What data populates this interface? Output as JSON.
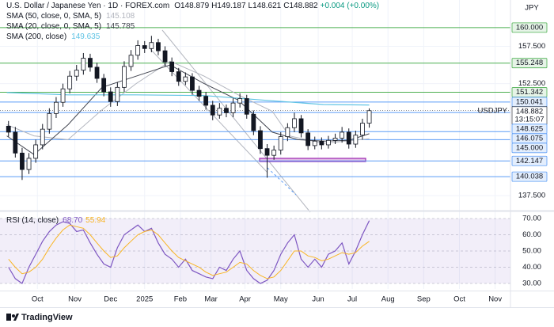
{
  "chart_data": {
    "type": "candlestick",
    "title": "U.S. Dollar / Japanese Yen · 1D · FOREX.com",
    "quote": [
      "O148.879",
      "H149.187",
      "L148.621",
      "C148.882",
      "+0.004 (+0.00%)"
    ],
    "currency": "JPY",
    "xlim": [
      0,
      300
    ],
    "xticks": [
      {
        "value": 22,
        "label": "Oct"
      },
      {
        "value": 44,
        "label": "Nov"
      },
      {
        "value": 65,
        "label": "Dec"
      },
      {
        "value": 85,
        "label": "2025"
      },
      {
        "value": 106,
        "label": "Feb"
      },
      {
        "value": 124,
        "label": "Mar"
      },
      {
        "value": 144,
        "label": "Apr"
      },
      {
        "value": 165,
        "label": "May"
      },
      {
        "value": 187,
        "label": "Jun"
      },
      {
        "value": 207,
        "label": "Jul"
      },
      {
        "value": 228,
        "label": "Aug"
      },
      {
        "value": 249,
        "label": "Sep"
      },
      {
        "value": 270,
        "label": "Oct"
      },
      {
        "value": 291,
        "label": "Nov"
      }
    ],
    "ylim": [
      135.6,
      163.7
    ],
    "yticks": [
      {
        "value": 137.5,
        "label": "137.500"
      },
      {
        "value": 152.5,
        "label": "152.500"
      },
      {
        "value": 157.5,
        "label": "157.500"
      }
    ],
    "grid": true,
    "candles": {
      "x": [
        5,
        9,
        13,
        17,
        21,
        25,
        29,
        33,
        37,
        41,
        45,
        49,
        53,
        57,
        61,
        65,
        69,
        73,
        77,
        81,
        85,
        89,
        93,
        97,
        101,
        105,
        109,
        113,
        117,
        121,
        125,
        129,
        133,
        137,
        141,
        145,
        149,
        153,
        157,
        161,
        165,
        169,
        173,
        177,
        181,
        185,
        189,
        193,
        197,
        201,
        205,
        209,
        213,
        217
      ],
      "open": [
        146.8,
        146.0,
        143.2,
        141.0,
        142.5,
        144.3,
        146.4,
        148.5,
        150.0,
        151.8,
        153.5,
        154.3,
        155.9,
        154.7,
        153.2,
        151.4,
        150.1,
        152.0,
        154.8,
        156.3,
        157.6,
        157.2,
        158.0,
        156.9,
        155.4,
        154.1,
        152.8,
        153.4,
        151.6,
        150.8,
        149.6,
        148.3,
        149.2,
        148.6,
        149.9,
        150.5,
        148.4,
        146.2,
        143.8,
        142.9,
        143.6,
        145.4,
        146.6,
        147.8,
        145.9,
        144.2,
        144.8,
        144.3,
        144.9,
        145.2,
        146.0,
        144.4,
        145.6,
        147.2
      ],
      "high": [
        147.5,
        146.7,
        143.9,
        143.2,
        145.0,
        147.1,
        149.2,
        150.7,
        152.5,
        154.2,
        155.0,
        156.6,
        156.5,
        155.3,
        153.8,
        152.0,
        152.7,
        155.5,
        157.0,
        158.3,
        158.2,
        158.9,
        158.5,
        157.5,
        156.0,
        154.6,
        154.0,
        153.9,
        152.2,
        151.4,
        150.2,
        149.9,
        149.7,
        150.6,
        151.2,
        151.0,
        148.9,
        146.8,
        144.4,
        144.2,
        146.0,
        147.2,
        148.6,
        148.3,
        146.4,
        145.4,
        145.3,
        145.5,
        145.8,
        146.7,
        146.5,
        146.2,
        147.8,
        149.187
      ],
      "low": [
        145.4,
        142.6,
        139.6,
        140.4,
        141.9,
        143.7,
        145.8,
        147.9,
        149.4,
        151.2,
        152.9,
        153.7,
        154.1,
        152.6,
        150.8,
        149.4,
        149.5,
        151.4,
        154.2,
        155.7,
        156.6,
        156.7,
        156.3,
        154.8,
        153.5,
        152.2,
        152.3,
        151.0,
        150.2,
        149.0,
        147.6,
        147.8,
        148.0,
        148.0,
        149.3,
        147.8,
        145.6,
        143.1,
        139.9,
        142.3,
        143.0,
        144.8,
        146.0,
        145.3,
        143.6,
        143.7,
        143.7,
        143.8,
        144.4,
        144.6,
        143.8,
        143.9,
        145.0,
        146.6
      ],
      "close": [
        146.0,
        143.2,
        141.0,
        142.5,
        144.3,
        146.4,
        148.5,
        150.0,
        151.8,
        153.5,
        154.3,
        155.9,
        154.7,
        153.2,
        151.4,
        150.1,
        152.0,
        154.8,
        156.3,
        157.6,
        157.2,
        158.0,
        156.9,
        155.4,
        154.1,
        152.8,
        153.4,
        151.6,
        150.8,
        149.6,
        148.3,
        149.2,
        148.6,
        149.9,
        150.5,
        148.4,
        146.2,
        143.8,
        142.9,
        143.6,
        145.4,
        146.6,
        147.8,
        145.9,
        144.2,
        144.8,
        144.3,
        144.9,
        145.2,
        146.0,
        144.4,
        145.6,
        147.2,
        148.882
      ]
    },
    "series": [
      {
        "name": "SMA (50, close, 0, SMA, 5)",
        "color": "#b2b5be",
        "value_label": "145.108",
        "x": [
          4,
          20,
          40,
          60,
          80,
          100,
          120,
          140,
          160,
          170,
          190,
          217
        ],
        "values": [
          147.0,
          145.5,
          145.0,
          149.0,
          152.5,
          155.5,
          153.5,
          151.0,
          148.8,
          145.5,
          144.5,
          145.108
        ]
      },
      {
        "name": "SMA (20, close, 0, SMA, 5)",
        "color": "#434651",
        "value_label": "145.785",
        "x": [
          4,
          20,
          40,
          60,
          80,
          100,
          120,
          140,
          160,
          175,
          190,
          205,
          217
        ],
        "values": [
          145.5,
          143.0,
          147.0,
          152.0,
          153.5,
          155.0,
          152.5,
          150.3,
          146.0,
          145.0,
          144.8,
          144.9,
          145.785
        ]
      },
      {
        "name": "SMA (200, close)",
        "color": "#5fc3e4",
        "value_label": "149.635",
        "x": [
          4,
          40,
          80,
          120,
          160,
          190,
          217
        ],
        "values": [
          151.3,
          151.0,
          151.0,
          150.9,
          150.2,
          149.7,
          149.635
        ]
      }
    ],
    "levels": [
      {
        "value": 160,
        "label": "160.000",
        "color": "#4caf50"
      },
      {
        "value": 155.248,
        "color": "#4caf50"
      },
      {
        "value": 151.342,
        "color": "#4caf50"
      },
      {
        "value": 150.041,
        "color": "#5b9cf6"
      },
      {
        "value": 148.625,
        "color": "#5b9cf6"
      },
      {
        "value": 146.075,
        "color": "#5b9cf6"
      },
      {
        "value": 145,
        "label": "145.000",
        "color": "#5b9cf6"
      },
      {
        "value": 142.147,
        "color": "#5b9cf6"
      },
      {
        "value": 140.038,
        "color": "#5b9cf6"
      }
    ],
    "current": {
      "name": "USDJPY",
      "value": 148.882,
      "countdown": "13:15:07"
    },
    "rsi": {
      "name": "RSI (14, close)",
      "color": "#7e57c2",
      "ma_color": "#f9b523",
      "value_label": "68.70",
      "ma_label": "55.94",
      "ylim": [
        26.6,
        73.9
      ],
      "band": [
        30,
        70
      ],
      "yticks": [
        {
          "value": 70,
          "label": "70.00"
        },
        {
          "value": 60,
          "label": "60.00"
        },
        {
          "value": 50,
          "label": "50.00"
        },
        {
          "value": 40,
          "label": "40.00"
        },
        {
          "value": 30,
          "label": "30.00"
        }
      ],
      "values": [
        40,
        33,
        30,
        40,
        48,
        56,
        62,
        66,
        68,
        67,
        62,
        63,
        55,
        48,
        42,
        40,
        52,
        60,
        63,
        66,
        62,
        64,
        55,
        48,
        45,
        40,
        45,
        38,
        36,
        34,
        33,
        40,
        38,
        45,
        50,
        38,
        33,
        30,
        32,
        38,
        48,
        55,
        60,
        45,
        40,
        45,
        40,
        48,
        50,
        55,
        42,
        50,
        60,
        68.7
      ],
      "ma_values": [
        45,
        40,
        36,
        37,
        40,
        45,
        52,
        58,
        63,
        66,
        65,
        64,
        60,
        55,
        50,
        46,
        47,
        52,
        56,
        60,
        62,
        63,
        60,
        55,
        50,
        46,
        44,
        42,
        40,
        37,
        35,
        36,
        37,
        40,
        43,
        42,
        38,
        35,
        33,
        34,
        38,
        44,
        50,
        50,
        47,
        46,
        44,
        45,
        47,
        49,
        48,
        49,
        53,
        55.94
      ]
    },
    "brand": "TradingView"
  }
}
